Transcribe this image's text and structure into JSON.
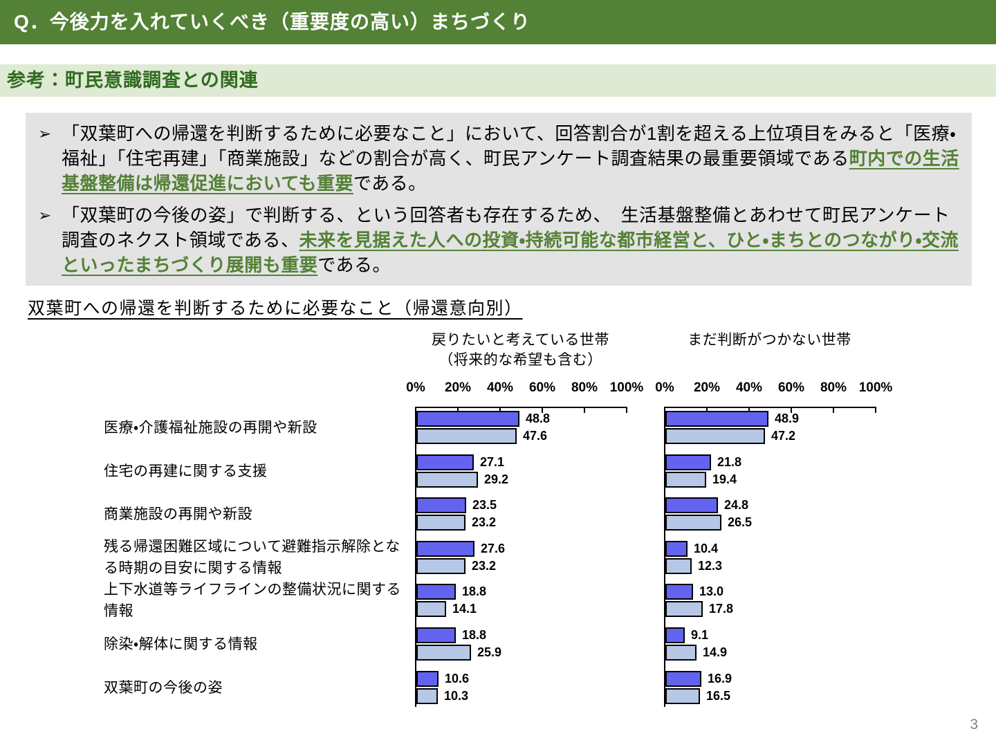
{
  "header": {
    "title": "Q．今後力を入れていくべき（重要度の高い）まちづくり"
  },
  "subheader": {
    "title": "参考：町民意識調査との関連"
  },
  "summary": {
    "marker": "➢",
    "bullets": [
      {
        "segments": [
          {
            "text": "「双葉町への帰還を判断するために必要なこと」において、回答割合が1割を超える上位項目をみると「医療・福祉」「住宅再建」「商業施設」などの割合が高く、町民アンケート調査結果の最重要領域である",
            "highlight": false
          },
          {
            "text": "町内での生活基盤整備は帰還促進においても重要",
            "highlight": true
          },
          {
            "text": "である。",
            "highlight": false
          }
        ]
      },
      {
        "segments": [
          {
            "text": "「双葉町の今後の姿」で判断する、という回答者も存在するため、　生活基盤整備とあわせて町民アンケート調査のネクスト領域である、",
            "highlight": false
          },
          {
            "text": "未来を見据えた人への投資・持続可能な都市経営と、ひと・まちとのつながり・交流といったまちづくり展開も重要",
            "highlight": true
          },
          {
            "text": "である。",
            "highlight": false
          }
        ]
      }
    ]
  },
  "section": {
    "title": "双葉町への帰還を判断するために必要なこと（帰還意向別）"
  },
  "chart_data": {
    "type": "bar",
    "orientation": "horizontal",
    "grid": false,
    "legend": false,
    "xlim": [
      0,
      100
    ],
    "x_ticks": [
      "0%",
      "20%",
      "40%",
      "60%",
      "80%",
      "100%"
    ],
    "categories": [
      "医療・介護福祉施設の再開や新設",
      "住宅の再建に関する支援",
      "商業施設の再開や新設",
      "残る帰還困難区域について避難指示解除となる時期の目安に関する情報",
      "上下水道等ライフラインの整備状況に関する情報",
      "除染・解体に関する情報",
      "双葉町の今後の姿"
    ],
    "panels": [
      {
        "title_lines": [
          "戻りたいと考えている世帯",
          "（将来的な希望も含む）"
        ],
        "series": [
          {
            "name": "dark_blue_bar",
            "values": [
              48.8,
              27.1,
              23.5,
              27.6,
              18.8,
              18.8,
              10.6
            ]
          },
          {
            "name": "light_blue_bar",
            "values": [
              47.6,
              29.2,
              23.2,
              23.2,
              14.1,
              25.9,
              10.3
            ]
          }
        ]
      },
      {
        "title_lines": [
          "まだ判断がつかない世帯"
        ],
        "series": [
          {
            "name": "dark_blue_bar",
            "values": [
              48.9,
              21.8,
              24.8,
              10.4,
              13.0,
              9.1,
              16.9
            ]
          },
          {
            "name": "light_blue_bar",
            "values": [
              47.2,
              19.4,
              26.5,
              12.3,
              17.8,
              14.9,
              16.5
            ]
          }
        ]
      }
    ]
  },
  "colors": {
    "header_bg": "#538135",
    "subheader_bg": "#deead4",
    "subheader_text": "#2f6b1f",
    "summary_bg": "#e3e3e3",
    "highlight_text": "#538135",
    "dark_bar": "#6363f0",
    "light_bar": "#b7c7e6",
    "page_number": "#808080"
  },
  "footer": {
    "page_number": "3"
  }
}
